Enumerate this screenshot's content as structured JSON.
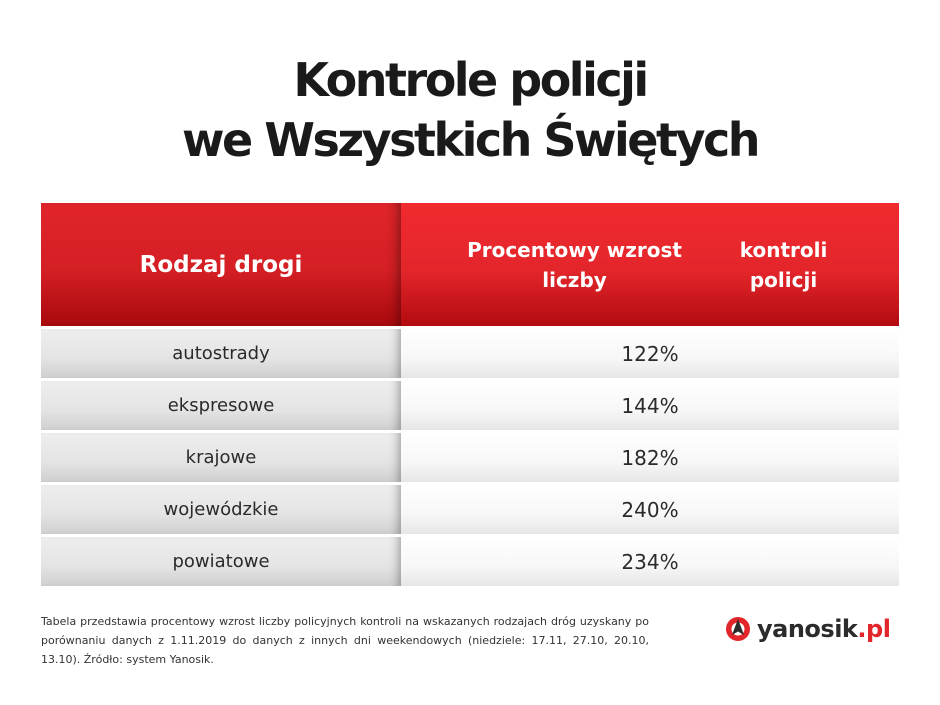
{
  "title": {
    "line1": "Kontrole policji",
    "line2": "we Wszystkich Świętych"
  },
  "table": {
    "header": {
      "col1": "Rodzaj drogi",
      "col2_line1": "Procentowy wzrost liczby",
      "col2_line2": "kontroli policji"
    },
    "rows": [
      {
        "type": "autostrady",
        "value": "122%"
      },
      {
        "type": "ekspresowe",
        "value": "144%"
      },
      {
        "type": "krajowe",
        "value": "182%"
      },
      {
        "type": "wojewódzkie",
        "value": "240%"
      },
      {
        "type": "powiatowe",
        "value": "234%"
      }
    ]
  },
  "footnote": "Tabela przedstawia procentowy wzrost liczby policyjnych kontroli na wskazanych rodzajach dróg uzyskany po porównaniu danych z 1.11.2019 do danych z innych dni weekendowych (niedziele: 17.11, 27.10, 20.10, 13.10). Źródło: system Yanosik.",
  "logo": {
    "icon": "yanosik-logo-icon",
    "name": "yanosik",
    "tld": ".pl"
  },
  "colors": {
    "accent_red": "#e3262b",
    "dark_red": "#a8090d",
    "text_dark": "#1a1a1a",
    "row_left_bg": "#e4e4e4",
    "row_right_bg": "#f7f7f7"
  }
}
